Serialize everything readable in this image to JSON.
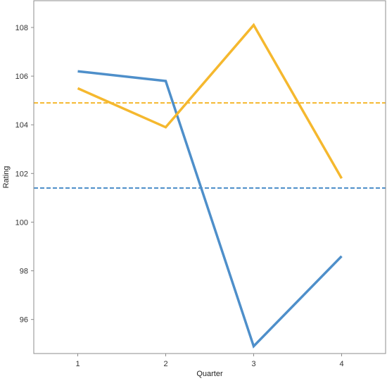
{
  "chart_data": {
    "type": "line",
    "title": "",
    "xlabel": "Quarter",
    "ylabel": "Rating",
    "x": [
      1,
      2,
      3,
      4
    ],
    "xticks": [
      "1",
      "2",
      "3",
      "4"
    ],
    "yticks": [
      "96",
      "98",
      "100",
      "102",
      "104",
      "106",
      "108"
    ],
    "xlim": [
      0.5,
      4.5
    ],
    "ylim": [
      94.6,
      109.1
    ],
    "grid": false,
    "legend": "none",
    "series": [
      {
        "values": [
          106.2,
          105.8,
          94.9,
          98.6
        ],
        "color": "#4e8fca"
      },
      {
        "values": [
          105.5,
          103.9,
          108.1,
          101.8
        ],
        "color": "#f5b82e"
      }
    ],
    "reference_lines": [
      {
        "y": 104.9,
        "style": "dashed",
        "color": "#f5b82e"
      },
      {
        "y": 101.4,
        "style": "dashed",
        "color": "#4e8fca"
      }
    ]
  }
}
